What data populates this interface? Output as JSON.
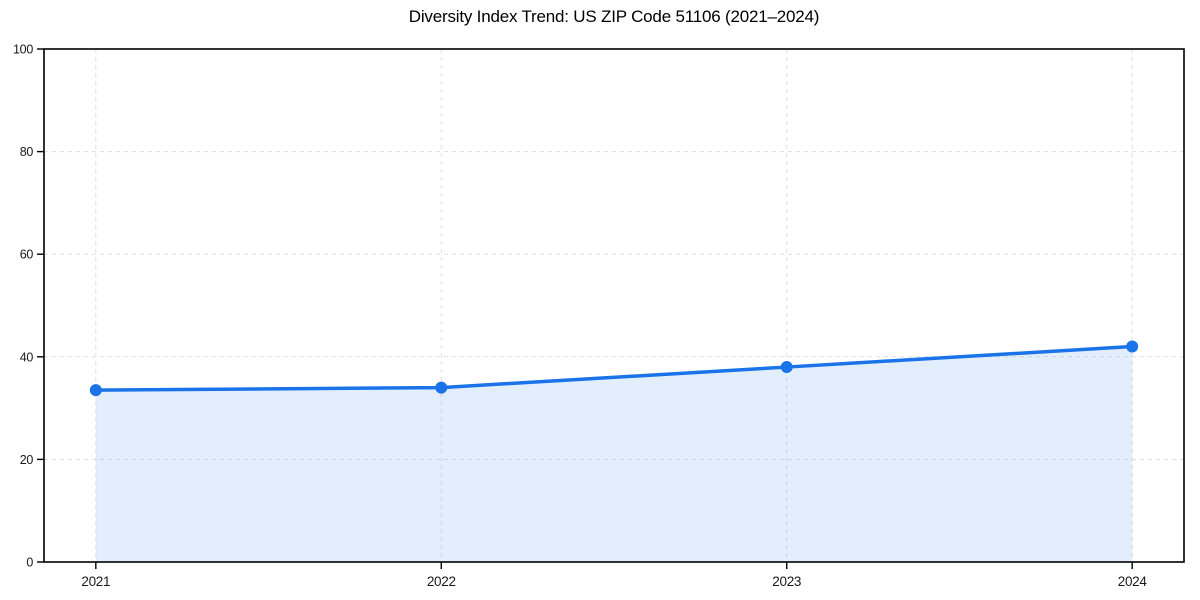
{
  "chart_data": {
    "type": "area",
    "title": "Diversity Index Trend: US ZIP Code 51106 (2021–2024)",
    "x": [
      2021,
      2022,
      2023,
      2024
    ],
    "xticks": [
      "2021",
      "2022",
      "2023",
      "2024"
    ],
    "series": [
      {
        "name": "Diversity Index",
        "values": [
          33.5,
          34,
          38,
          42
        ]
      }
    ],
    "xlabel": "",
    "ylabel": "",
    "ylim": [
      0,
      100
    ],
    "yticks": [
      0,
      20,
      40,
      60,
      80,
      100
    ],
    "grid": true,
    "grid_style": "dashed",
    "legend": "none",
    "marker": "circle",
    "colors": {
      "line": "#1a73e8",
      "marker": "#1a73e8",
      "fill": "#1a73e8",
      "fill_opacity": 0.12,
      "grid": "#dcdcdc",
      "spine": "#000000",
      "tick_text": "#1a1a1a",
      "background": "#ffffff"
    }
  }
}
